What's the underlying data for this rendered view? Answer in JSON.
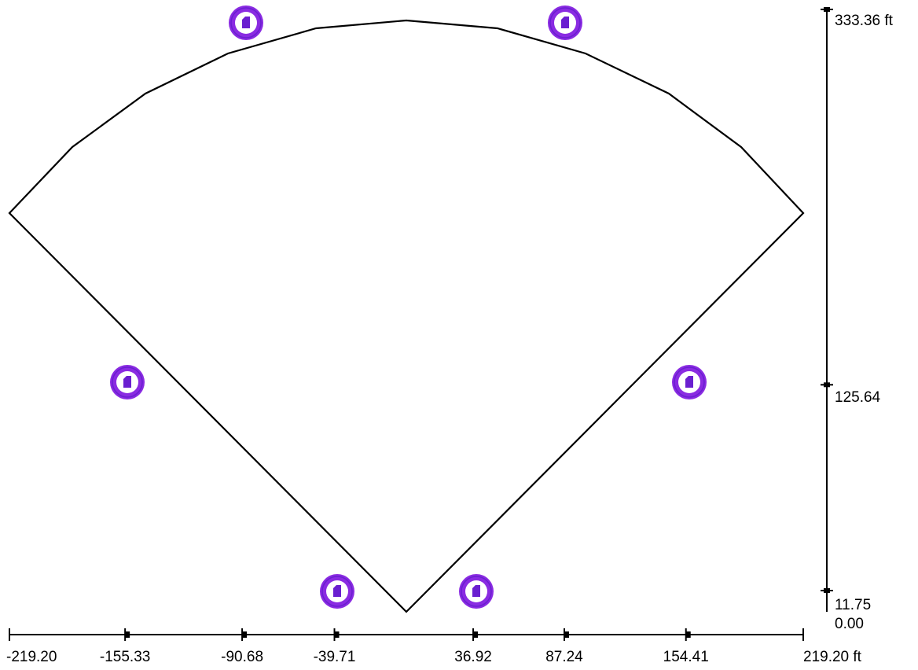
{
  "units": "ft",
  "field_outline": {
    "shape": "fan",
    "description_points_ft": [
      {
        "x": 0,
        "y": 0
      },
      {
        "x": -219.2,
        "y": 219.2
      },
      {
        "x": 219.2,
        "y": 219.2
      }
    ]
  },
  "x_axis": {
    "ticks": [
      {
        "value": -219.2,
        "label": "-219.20"
      },
      {
        "value": -155.33,
        "label": "-155.33"
      },
      {
        "value": -90.68,
        "label": "-90.68"
      },
      {
        "value": -39.71,
        "label": "-39.71"
      },
      {
        "value": 36.92,
        "label": "36.92"
      },
      {
        "value": 87.24,
        "label": "87.24"
      },
      {
        "value": 154.41,
        "label": "154.41"
      },
      {
        "value": 219.2,
        "label": "219.20 ft"
      }
    ]
  },
  "y_axis": {
    "ticks": [
      {
        "value": 0.0,
        "label": "0.00"
      },
      {
        "value": 11.75,
        "label": "11.75"
      },
      {
        "value": 125.64,
        "label": "125.64"
      },
      {
        "value": 333.36,
        "label": "333.36 ft"
      }
    ]
  },
  "fixtures": [
    {
      "id": "fixture-1",
      "x": -90.68,
      "y": 333.36
    },
    {
      "id": "fixture-2",
      "x": 87.24,
      "y": 333.36
    },
    {
      "id": "fixture-3",
      "x": -155.33,
      "y": 125.64
    },
    {
      "id": "fixture-4",
      "x": 154.41,
      "y": 125.64
    },
    {
      "id": "fixture-5",
      "x": -39.71,
      "y": 11.75
    },
    {
      "id": "fixture-6",
      "x": 36.92,
      "y": 11.75
    }
  ],
  "colors": {
    "outline": "#000000",
    "fixture": "#8a2be2",
    "fixture_dark": "#6a1fd0"
  }
}
